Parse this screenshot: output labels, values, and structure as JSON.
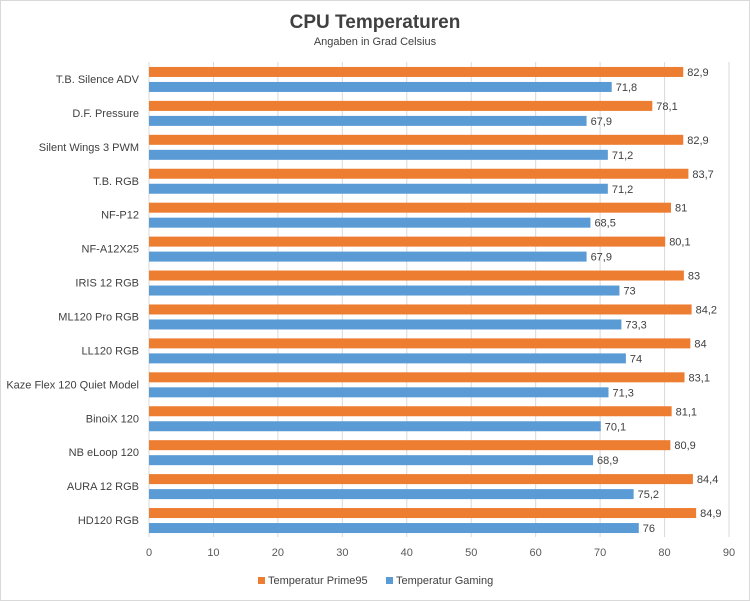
{
  "chart_data": {
    "type": "bar",
    "orientation": "horizontal",
    "title": "CPU Temperaturen",
    "subtitle": "Angaben in Grad Celsius",
    "categories": [
      "T.B. Silence ADV",
      "D.F. Pressure",
      "Silent Wings 3 PWM",
      "T.B. RGB",
      "NF-P12",
      "NF-A12X25",
      "IRIS 12 RGB",
      "ML120 Pro RGB",
      "LL120 RGB",
      "Kaze Flex 120 Quiet Model",
      "BinoiX 120",
      "NB eLoop 120",
      "AURA 12 RGB",
      "HD120 RGB"
    ],
    "series": [
      {
        "name": "Temperatur Prime95",
        "color": "#ed7d31",
        "values": [
          82.9,
          78.1,
          82.9,
          83.7,
          81,
          80.1,
          83,
          84.2,
          84,
          83.1,
          81.1,
          80.9,
          84.4,
          84.9
        ],
        "labels": [
          "82,9",
          "78,1",
          "82,9",
          "83,7",
          "81",
          "80,1",
          "83",
          "84,2",
          "84",
          "83,1",
          "81,1",
          "80,9",
          "84,4",
          "84,9"
        ]
      },
      {
        "name": "Temperatur Gaming",
        "color": "#5b9bd5",
        "values": [
          71.8,
          67.9,
          71.2,
          71.2,
          68.5,
          67.9,
          73,
          73.3,
          74,
          71.3,
          70.1,
          68.9,
          75.2,
          76
        ],
        "labels": [
          "71,8",
          "67,9",
          "71,2",
          "71,2",
          "68,5",
          "67,9",
          "73",
          "73,3",
          "74",
          "71,3",
          "70,1",
          "68,9",
          "75,2",
          "76"
        ]
      }
    ],
    "xlim": [
      0,
      90
    ],
    "xticks": [
      "0",
      "10",
      "20",
      "30",
      "40",
      "50",
      "60",
      "70",
      "80",
      "90"
    ],
    "grid": true,
    "legend": "bottom"
  }
}
